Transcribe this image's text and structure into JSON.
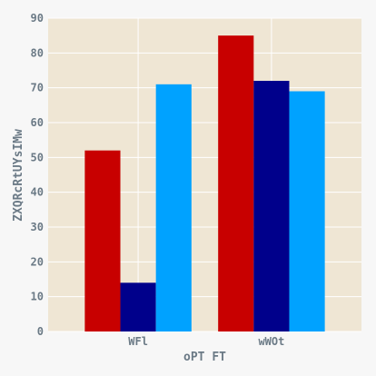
{
  "chart_data": {
    "type": "bar",
    "title": "",
    "xlabel": "oPT FT",
    "ylabel": "ZXQRcRtUYsIMw",
    "categories": [
      "WFl",
      "wWOt"
    ],
    "series": [
      {
        "values": [
          52,
          85
        ]
      },
      {
        "values": [
          14,
          72
        ]
      },
      {
        "values": [
          71,
          69
        ]
      }
    ],
    "ylim": [
      0,
      90
    ],
    "yticks": [
      0,
      10,
      20,
      30,
      40,
      50,
      60,
      70,
      80,
      90
    ],
    "grid": true,
    "legend": "none",
    "colors": {
      "page_background": "#f7f7f7",
      "plot_background": "#efe6d4",
      "grid": "#ffffff",
      "text": "#6b7a86",
      "series": [
        "#c80000",
        "#00008b",
        "#00a2ff"
      ]
    }
  }
}
